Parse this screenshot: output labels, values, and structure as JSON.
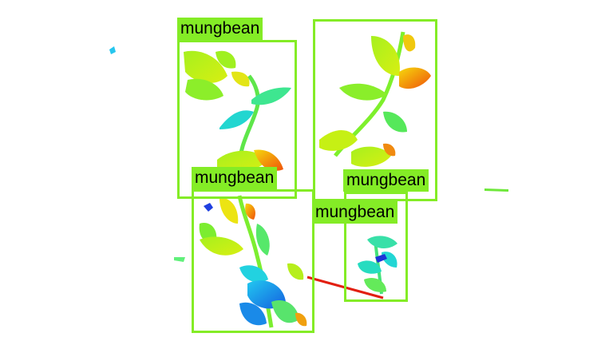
{
  "detections": [
    {
      "label": "mungbean"
    },
    {
      "label": "mungbean"
    },
    {
      "label": "mungbean"
    },
    {
      "label": "mungbean"
    },
    {
      "label": "mungbean"
    }
  ],
  "colors": {
    "box": "#84ec26",
    "label_text": "#000000",
    "background": "#ffffff"
  }
}
